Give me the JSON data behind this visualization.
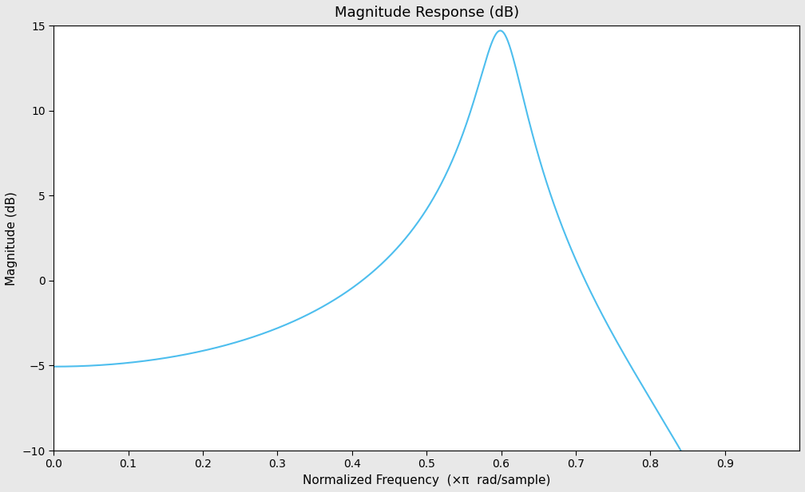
{
  "title": "Magnitude Response (dB)",
  "xlabel": "Normalized Frequency  (×π  rad/sample)",
  "ylabel": "Magnitude (dB)",
  "line_color": "#4DBEEE",
  "line_width": 1.5,
  "xlim": [
    0,
    1.0
  ],
  "ylim": [
    -10,
    15
  ],
  "xticks": [
    0,
    0.1,
    0.2,
    0.3,
    0.4,
    0.5,
    0.6,
    0.7,
    0.8,
    0.9
  ],
  "yticks": [
    -10,
    -5,
    0,
    5,
    10,
    15
  ],
  "background_color": "#E8E8E8",
  "axes_background": "#FFFFFF",
  "grid_color": "#FFFFFF",
  "title_fontsize": 13,
  "label_fontsize": 11,
  "tick_fontsize": 10,
  "filter_r": 0.92,
  "filter_omega0": 0.6,
  "num_points": 1024
}
